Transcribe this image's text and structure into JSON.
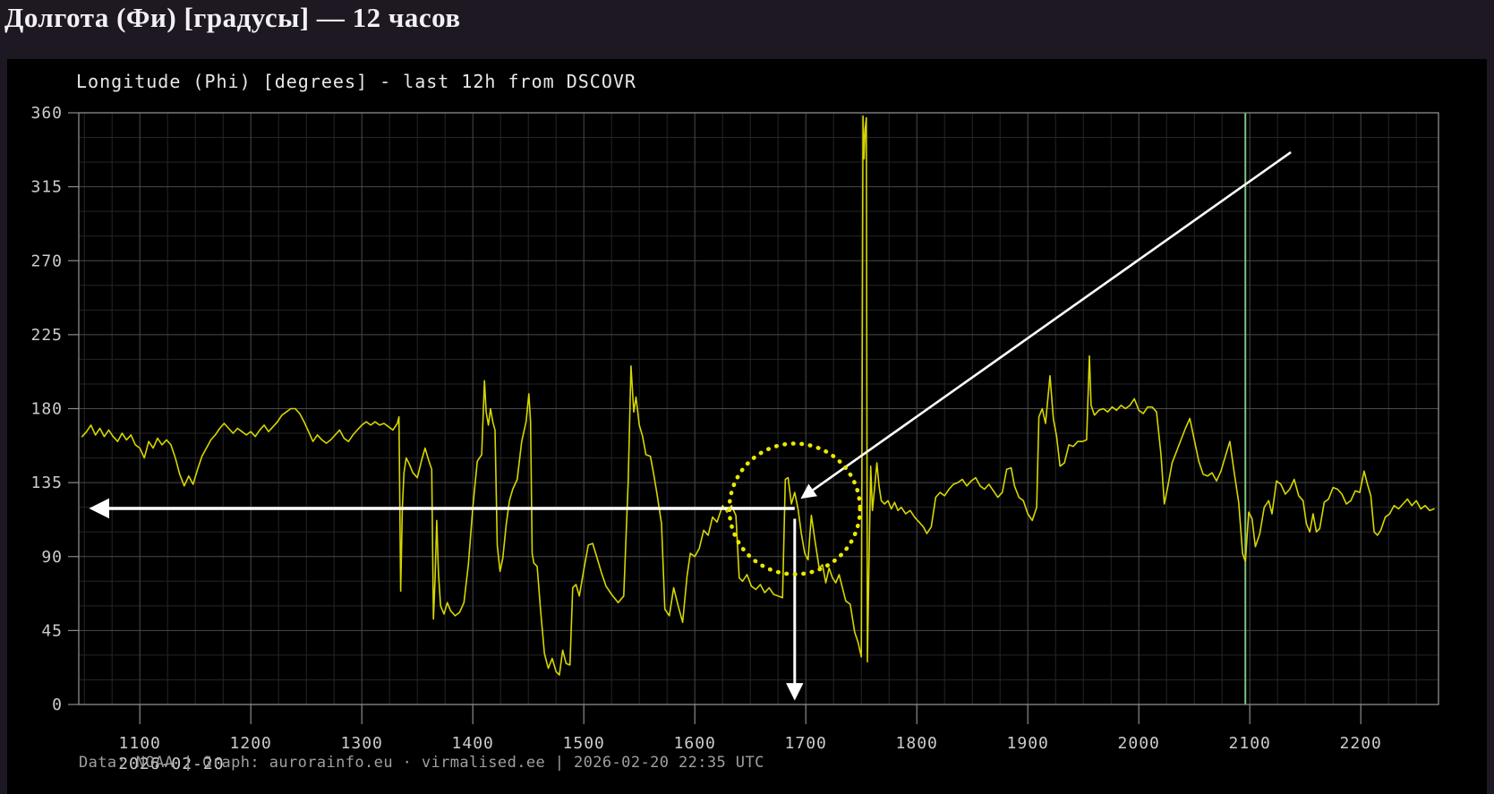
{
  "page": {
    "title": "Долгота (Фи) [градусы] — 12 часов"
  },
  "colors": {
    "page_bg": "#1e1822",
    "panel_bg": "#000000",
    "grid_minor": "#252525",
    "grid_major": "#4a4a4a",
    "frame": "#8c8c8c",
    "tick_label": "#cccccc",
    "title_text": "#e8e8e8",
    "footer_text": "#9f9f9f",
    "series_yellow": "#d6d600",
    "green_line": "#7cc47c",
    "annotation_white": "#ffffff",
    "annotation_yellow": "#e8e800",
    "page_title_text": "#f3f1f5"
  },
  "chart_data": {
    "type": "line",
    "title": "Longitude (Phi) [degrees] - last 12h from DSCOVR",
    "footer": "Data: NOAA | Graph: aurorainfo.eu · virmalised.ee | 2026-02-20 22:35 UTC",
    "date_label": "2026-02-20",
    "xlabel": "",
    "ylabel": "",
    "xlim": [
      10.45,
      22.7
    ],
    "ylim": [
      0,
      360
    ],
    "grid": {
      "x_major_step_hours": 1,
      "x_minor_step_hours": 0.25,
      "y_major_step": 45,
      "y_minor_step": 15,
      "grid_on": true
    },
    "legend": null,
    "x_ticks": [
      {
        "t": 11,
        "label": "1100"
      },
      {
        "t": 12,
        "label": "1200"
      },
      {
        "t": 13,
        "label": "1300"
      },
      {
        "t": 14,
        "label": "1400"
      },
      {
        "t": 15,
        "label": "1500"
      },
      {
        "t": 16,
        "label": "1600"
      },
      {
        "t": 17,
        "label": "1700"
      },
      {
        "t": 18,
        "label": "1800"
      },
      {
        "t": 19,
        "label": "1900"
      },
      {
        "t": 20,
        "label": "2000"
      },
      {
        "t": 21,
        "label": "2100"
      },
      {
        "t": 22,
        "label": "2200"
      }
    ],
    "y_ticks": [
      {
        "v": 0,
        "label": "0"
      },
      {
        "v": 45,
        "label": "45"
      },
      {
        "v": 90,
        "label": "90"
      },
      {
        "v": 135,
        "label": "135"
      },
      {
        "v": 180,
        "label": "180"
      },
      {
        "v": 225,
        "label": "225"
      },
      {
        "v": 270,
        "label": "270"
      },
      {
        "v": 315,
        "label": "315"
      },
      {
        "v": 360,
        "label": "360"
      }
    ],
    "annotations": {
      "green_vline": {
        "t": 20.96,
        "color": "#7cc47c"
      },
      "dotted_circle": {
        "t": 16.9,
        "phi": 119,
        "radius_px": 73,
        "color": "#e8e800"
      },
      "horizontal_arrow": {
        "phi": 119.3,
        "t_from": 16.9,
        "t_to": 10.57,
        "color": "#ffffff"
      },
      "vertical_arrow": {
        "t": 16.9,
        "phi_from": 113,
        "phi_to": 4,
        "color": "#ffffff"
      },
      "diagonal_arrow": {
        "from": {
          "t": 21.37,
          "phi": 336
        },
        "to": {
          "t": 16.97,
          "phi": 126
        },
        "color": "#ffffff"
      }
    },
    "series": [
      {
        "name": "Longitude Phi (DSCOVR)",
        "color": "#d6d600",
        "x": [
          10.48,
          10.52,
          10.56,
          10.6,
          10.64,
          10.68,
          10.72,
          10.76,
          10.8,
          10.84,
          10.88,
          10.92,
          10.96,
          11.0,
          11.04,
          11.08,
          11.12,
          11.16,
          11.2,
          11.24,
          11.28,
          11.32,
          11.36,
          11.4,
          11.44,
          11.48,
          11.52,
          11.56,
          11.6,
          11.64,
          11.68,
          11.72,
          11.76,
          11.8,
          11.84,
          11.88,
          11.92,
          11.96,
          12.0,
          12.04,
          12.08,
          12.12,
          12.16,
          12.2,
          12.24,
          12.28,
          12.32,
          12.36,
          12.4,
          12.44,
          12.48,
          12.52,
          12.56,
          12.6,
          12.64,
          12.68,
          12.72,
          12.76,
          12.8,
          12.84,
          12.88,
          12.92,
          12.96,
          13.0,
          13.04,
          13.08,
          13.12,
          13.16,
          13.2,
          13.24,
          13.28,
          13.32,
          13.335,
          13.35,
          13.365,
          13.38,
          13.4,
          13.43,
          13.46,
          13.5,
          13.54,
          13.57,
          13.6,
          13.63,
          13.645,
          13.66,
          13.675,
          13.69,
          13.71,
          13.74,
          13.77,
          13.8,
          13.84,
          13.88,
          13.92,
          13.96,
          14.0,
          14.04,
          14.08,
          14.105,
          14.12,
          14.14,
          14.16,
          14.18,
          14.2,
          14.22,
          14.245,
          14.27,
          14.3,
          14.33,
          14.36,
          14.4,
          14.44,
          14.48,
          14.505,
          14.52,
          14.535,
          14.55,
          14.58,
          14.61,
          14.645,
          14.68,
          14.715,
          14.75,
          14.78,
          14.81,
          14.84,
          14.875,
          14.9,
          14.93,
          14.96,
          15.0,
          15.04,
          15.08,
          15.12,
          15.16,
          15.2,
          15.25,
          15.31,
          15.36,
          15.4,
          15.425,
          15.45,
          15.47,
          15.5,
          15.53,
          15.56,
          15.6,
          15.63,
          15.66,
          15.7,
          15.73,
          15.77,
          15.81,
          15.85,
          15.89,
          15.93,
          15.96,
          16.0,
          16.04,
          16.08,
          16.12,
          16.16,
          16.2,
          16.25,
          16.29,
          16.33,
          16.37,
          16.4,
          16.43,
          16.47,
          16.51,
          16.55,
          16.59,
          16.63,
          16.67,
          16.71,
          16.75,
          16.79,
          16.815,
          16.84,
          16.87,
          16.9,
          16.93,
          16.96,
          16.99,
          17.02,
          17.05,
          17.08,
          17.12,
          17.15,
          17.18,
          17.21,
          17.24,
          17.27,
          17.3,
          17.33,
          17.36,
          17.4,
          17.44,
          17.47,
          17.5,
          17.515,
          17.525,
          17.535,
          17.545,
          17.555,
          17.57,
          17.585,
          17.6,
          17.62,
          17.64,
          17.66,
          17.68,
          17.71,
          17.74,
          17.77,
          17.8,
          17.83,
          17.86,
          17.9,
          17.94,
          17.98,
          18.02,
          18.06,
          18.09,
          18.13,
          18.17,
          18.21,
          18.25,
          18.29,
          18.33,
          18.37,
          18.41,
          18.45,
          18.49,
          18.53,
          18.57,
          18.61,
          18.65,
          18.69,
          18.73,
          18.77,
          18.81,
          18.85,
          18.88,
          18.92,
          18.96,
          19.0,
          19.04,
          19.08,
          19.1,
          19.13,
          19.16,
          19.2,
          19.23,
          19.26,
          19.29,
          19.33,
          19.37,
          19.41,
          19.45,
          19.49,
          19.53,
          19.555,
          19.57,
          19.6,
          19.64,
          19.68,
          19.72,
          19.76,
          19.8,
          19.84,
          19.88,
          19.92,
          19.96,
          20.0,
          20.04,
          20.08,
          20.12,
          20.16,
          20.2,
          20.23,
          20.26,
          20.3,
          20.34,
          20.38,
          20.42,
          20.46,
          20.5,
          20.54,
          20.58,
          20.62,
          20.66,
          20.7,
          20.74,
          20.78,
          20.82,
          20.86,
          20.9,
          20.935,
          20.96,
          20.99,
          21.02,
          21.05,
          21.09,
          21.13,
          21.17,
          21.2,
          21.24,
          21.28,
          21.32,
          21.36,
          21.4,
          21.44,
          21.48,
          21.51,
          21.54,
          21.57,
          21.6,
          21.63,
          21.67,
          21.71,
          21.75,
          21.79,
          21.83,
          21.87,
          21.91,
          21.95,
          21.99,
          22.03,
          22.06,
          22.09,
          22.12,
          22.15,
          22.18,
          22.22,
          22.26,
          22.3,
          22.34,
          22.38,
          22.42,
          22.46,
          22.5,
          22.54,
          22.58,
          22.62,
          22.66
        ],
        "y": [
          163,
          166,
          170,
          164,
          168,
          163,
          167,
          163,
          160,
          165,
          161,
          164,
          158,
          156,
          150,
          160,
          156,
          162,
          158,
          161,
          158,
          150,
          140,
          133,
          139,
          134,
          143,
          151,
          156,
          161,
          164,
          168,
          171,
          168,
          165,
          168,
          166,
          164,
          166,
          163,
          167,
          170,
          166,
          169,
          172,
          176,
          178,
          180,
          180,
          177,
          172,
          166,
          160,
          164,
          161,
          159,
          161,
          164,
          167,
          162,
          160,
          164,
          167,
          170,
          172,
          170,
          172,
          170,
          171,
          169,
          167,
          171,
          175,
          69,
          120,
          141,
          150,
          146,
          141,
          138,
          149,
          156,
          149,
          143,
          52,
          76,
          112,
          80,
          60,
          55,
          62,
          57,
          54,
          56,
          62,
          85,
          120,
          148,
          152,
          197,
          178,
          170,
          180,
          172,
          167,
          97,
          81,
          89,
          109,
          124,
          131,
          137,
          160,
          172,
          189,
          172,
          92,
          86,
          84,
          58,
          31,
          22,
          28,
          20,
          18,
          33,
          25,
          24,
          71,
          73,
          66,
          82,
          97,
          98,
          89,
          80,
          72,
          67,
          62,
          66,
          136,
          206,
          178,
          187,
          170,
          163,
          152,
          151,
          140,
          128,
          110,
          58,
          54,
          71,
          60,
          50,
          78,
          92,
          90,
          95,
          106,
          103,
          114,
          111,
          121,
          117,
          121,
          115,
          77,
          75,
          79,
          72,
          70,
          73,
          68,
          71,
          67,
          66,
          65,
          137,
          138,
          122,
          129,
          119,
          104,
          92,
          88,
          115,
          101,
          83,
          85,
          74,
          83,
          77,
          74,
          79,
          71,
          63,
          61,
          44,
          38,
          29,
          358,
          332,
          350,
          357,
          26,
          90,
          145,
          118,
          132,
          147,
          133,
          124,
          122,
          124,
          119,
          123,
          118,
          120,
          116,
          118,
          114,
          111,
          108,
          104,
          108,
          126,
          129,
          127,
          131,
          134,
          135,
          137,
          133,
          136,
          138,
          133,
          131,
          134,
          130,
          126,
          129,
          143,
          144,
          133,
          126,
          124,
          116,
          112,
          120,
          175,
          180,
          171,
          200,
          174,
          163,
          145,
          147,
          158,
          157,
          160,
          160,
          161,
          212,
          182,
          176,
          179,
          180,
          178,
          181,
          179,
          182,
          180,
          182,
          186,
          179,
          177,
          181,
          181,
          178,
          152,
          122,
          132,
          147,
          154,
          161,
          168,
          174,
          161,
          148,
          140,
          139,
          141,
          136,
          142,
          151,
          160,
          141,
          123,
          92,
          87,
          117,
          113,
          96,
          104,
          120,
          124,
          116,
          136,
          134,
          128,
          131,
          137,
          127,
          124,
          110,
          105,
          116,
          105,
          107,
          123,
          125,
          132,
          131,
          128,
          122,
          124,
          130,
          129,
          142,
          134,
          127,
          105,
          103,
          106,
          114,
          116,
          121,
          119,
          122,
          125,
          121,
          124,
          119,
          121,
          118,
          119
        ]
      }
    ]
  }
}
